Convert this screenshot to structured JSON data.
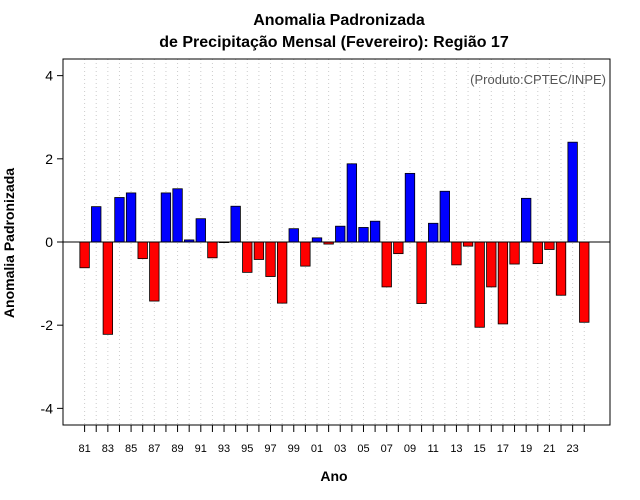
{
  "chart_data": {
    "type": "bar",
    "title_line1": "Anomalia Padronizada",
    "title_line2": "de Precipitação Mensal (Fevereiro): Região 17",
    "xlabel": "Ano",
    "ylabel": "Anomalia Padronizada",
    "credit": "(Produto:CPTEC/INPE)",
    "ylim": [
      -4.4,
      4.4
    ],
    "yticks": [
      -4,
      -2,
      0,
      2,
      4
    ],
    "ytick_labels": [
      "-4",
      "-2",
      "0",
      "2",
      "4"
    ],
    "grid": "vertical dotted",
    "colors": {
      "positive": "#0000ff",
      "negative": "#ff0000",
      "frame": "#000000",
      "grid": "#cccccc"
    },
    "categories": [
      "1981",
      "1982",
      "1983",
      "1984",
      "1985",
      "1986",
      "1987",
      "1988",
      "1989",
      "1990",
      "1991",
      "1992",
      "1993",
      "1994",
      "1995",
      "1996",
      "1997",
      "1998",
      "1999",
      "2000",
      "2001",
      "2002",
      "2003",
      "2004",
      "2005",
      "2006",
      "2007",
      "2008",
      "2009",
      "2010",
      "2011",
      "2012",
      "2013",
      "2014",
      "2015",
      "2016",
      "2017",
      "2018",
      "2019",
      "2020",
      "2021",
      "2022",
      "2023",
      "2024"
    ],
    "x_tick_labels": [
      "81",
      "83",
      "85",
      "87",
      "89",
      "91",
      "93",
      "95",
      "97",
      "99",
      "01",
      "03",
      "05",
      "07",
      "09",
      "11",
      "13",
      "15",
      "17",
      "19",
      "21",
      "23"
    ],
    "values": [
      -0.62,
      0.85,
      -2.22,
      1.07,
      1.18,
      -0.4,
      -1.42,
      1.18,
      1.28,
      0.05,
      0.56,
      -0.38,
      0.0,
      0.86,
      -0.73,
      -0.42,
      -0.83,
      -1.47,
      0.32,
      -0.58,
      0.1,
      -0.05,
      0.38,
      1.88,
      0.35,
      0.5,
      -1.08,
      -0.28,
      1.65,
      -1.48,
      0.45,
      1.22,
      -0.55,
      -0.1,
      -2.05,
      -1.08,
      -1.97,
      -0.53,
      1.05,
      -0.52,
      -0.18,
      -1.28,
      2.4,
      -1.93
    ]
  }
}
